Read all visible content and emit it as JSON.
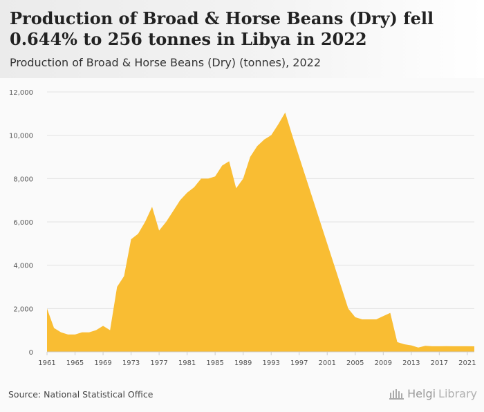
{
  "header": {
    "title": "Production of Broad & Horse Beans (Dry) fell 0.644% to 256 tonnes in Libya in 2022",
    "subtitle": "Production of Broad & Horse Beans (Dry) (tonnes), 2022"
  },
  "footer": {
    "source": "Source: National Statistical Office",
    "brand_a": "Helgi",
    "brand_b": "Library"
  },
  "colors": {
    "area": "#f9bd33",
    "grid": "#e2e2e2",
    "axis": "#cccccc",
    "text": "#555555"
  },
  "chart_data": {
    "type": "area",
    "x_start": 1961,
    "x_end": 2022,
    "ylim": [
      0,
      12000
    ],
    "grid": true,
    "yticks": [
      0,
      2000,
      4000,
      6000,
      8000,
      10000,
      12000
    ],
    "ytick_labels": [
      "0",
      "2,000",
      "4,000",
      "6,000",
      "8,000",
      "10,000",
      "12,000"
    ],
    "xticks": [
      1961,
      1965,
      1969,
      1973,
      1977,
      1981,
      1985,
      1989,
      1993,
      1997,
      2001,
      2005,
      2009,
      2013,
      2017,
      2021
    ],
    "series": [
      {
        "values": [
          2000,
          1100,
          900,
          800,
          800,
          900,
          900,
          1000,
          1200,
          1000,
          3000,
          3500,
          5200,
          5450,
          6000,
          6700,
          5600,
          6000,
          6500,
          7000,
          7350,
          7600,
          8000,
          8000,
          8100,
          8600,
          8800,
          7550,
          8000,
          9000,
          9500,
          9800,
          10000,
          10500,
          11050,
          10000,
          9000,
          8000,
          7000,
          6000,
          5000,
          4000,
          3000,
          2000,
          1600,
          1500,
          1500,
          1500,
          1650,
          1800,
          450,
          350,
          300,
          200,
          280,
          260,
          260,
          265,
          260,
          258,
          258,
          256
        ]
      }
    ]
  }
}
